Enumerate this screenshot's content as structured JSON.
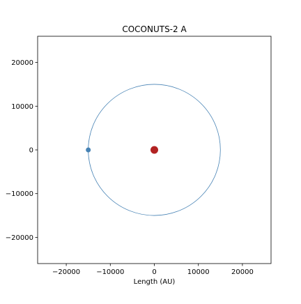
{
  "chart_data": {
    "type": "scatter",
    "title": "COCONUTS-2 A",
    "xlabel": "Length (AU)",
    "ylabel": "",
    "xlim": [
      -26500,
      26500
    ],
    "ylim": [
      -26000,
      26000
    ],
    "x_ticks": [
      -20000,
      -10000,
      0,
      10000,
      20000
    ],
    "y_ticks": [
      -20000,
      -10000,
      0,
      10000,
      20000
    ],
    "x_tick_labels": [
      "−20000",
      "−10000",
      "0",
      "10000",
      "20000"
    ],
    "y_tick_labels": [
      "−20000",
      "−10000",
      "0",
      "10000",
      "20000"
    ],
    "grid": false,
    "points": [
      {
        "x": 0,
        "y": 0,
        "color": "#b22222"
      },
      {
        "x": -15000,
        "y": 0,
        "color": "#4682b4"
      }
    ],
    "orbit": {
      "center_x": 0,
      "center_y": 0,
      "radius": 15000,
      "color": "#4682b4"
    }
  }
}
